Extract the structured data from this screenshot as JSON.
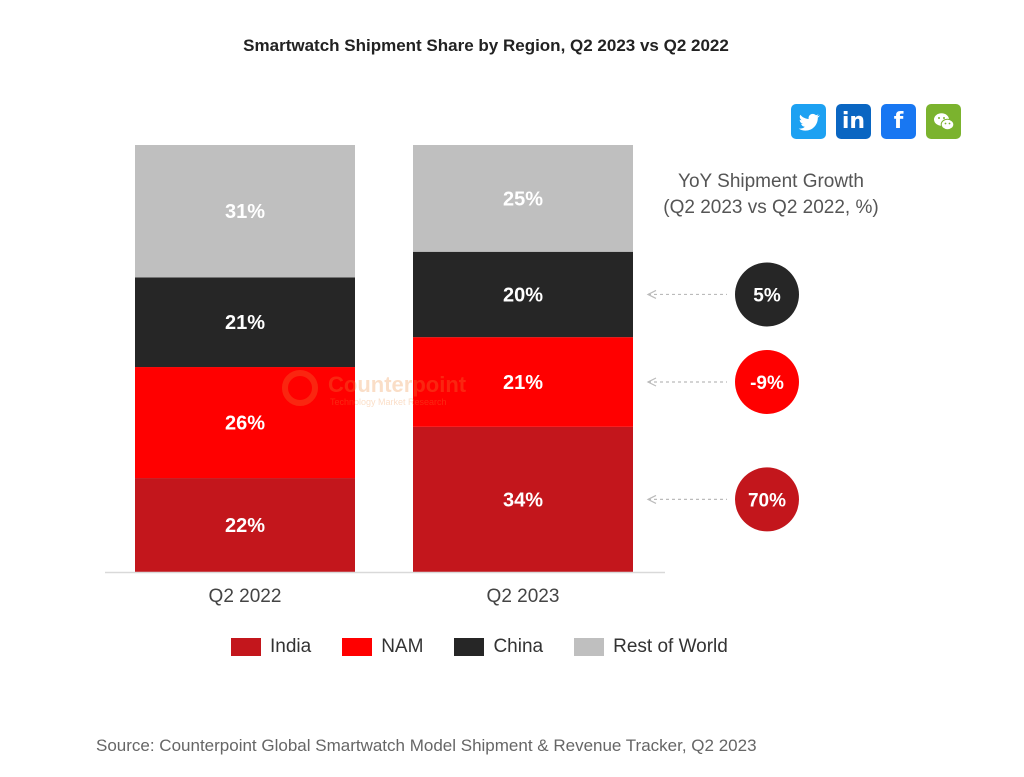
{
  "title": "Smartwatch Shipment Share by Region, Q2 2023 vs Q2 2022",
  "social": [
    {
      "name": "twitter-icon",
      "glyph": "",
      "color": "#1DA1F2"
    },
    {
      "name": "linkedin-icon",
      "glyph": "in",
      "color": "#0A66C2"
    },
    {
      "name": "facebook-icon",
      "glyph": "f",
      "color": "#1877F2"
    },
    {
      "name": "wechat-icon",
      "glyph": "",
      "color": "#7BB32E"
    }
  ],
  "chart_data": {
    "type": "bar",
    "stacked": true,
    "categories": [
      "Q2 2022",
      "Q2 2023"
    ],
    "series": [
      {
        "name": "India",
        "color": "#C3161C",
        "values": [
          22,
          34
        ],
        "labels": [
          "22%",
          "34%"
        ]
      },
      {
        "name": "NAM",
        "color": "#FF0000",
        "values": [
          26,
          21
        ],
        "labels": [
          "26%",
          "21%"
        ]
      },
      {
        "name": "China",
        "color": "#262626",
        "values": [
          21,
          20
        ],
        "labels": [
          "21%",
          "20%"
        ]
      },
      {
        "name": "Rest of World",
        "color": "#BFBFBF",
        "values": [
          31,
          25
        ],
        "labels": [
          "31%",
          "25%"
        ]
      }
    ],
    "ylim": [
      0,
      100
    ],
    "legend_position": "bottom",
    "growth_title": [
      "YoY Shipment Growth",
      "(Q2 2023 vs Q2 2022, %)"
    ],
    "growth": [
      {
        "series": "China",
        "label": "5%",
        "value": 5,
        "color": "#262626"
      },
      {
        "series": "NAM",
        "label": "-9%",
        "value": -9,
        "color": "#FF0000"
      },
      {
        "series": "India",
        "label": "70%",
        "value": 70,
        "color": "#C3161C"
      }
    ],
    "watermark": {
      "name": "Counterpoint",
      "tagline": "Technology Market Research"
    }
  },
  "source": "Source: Counterpoint Global Smartwatch Model Shipment & Revenue Tracker, Q2 2023"
}
